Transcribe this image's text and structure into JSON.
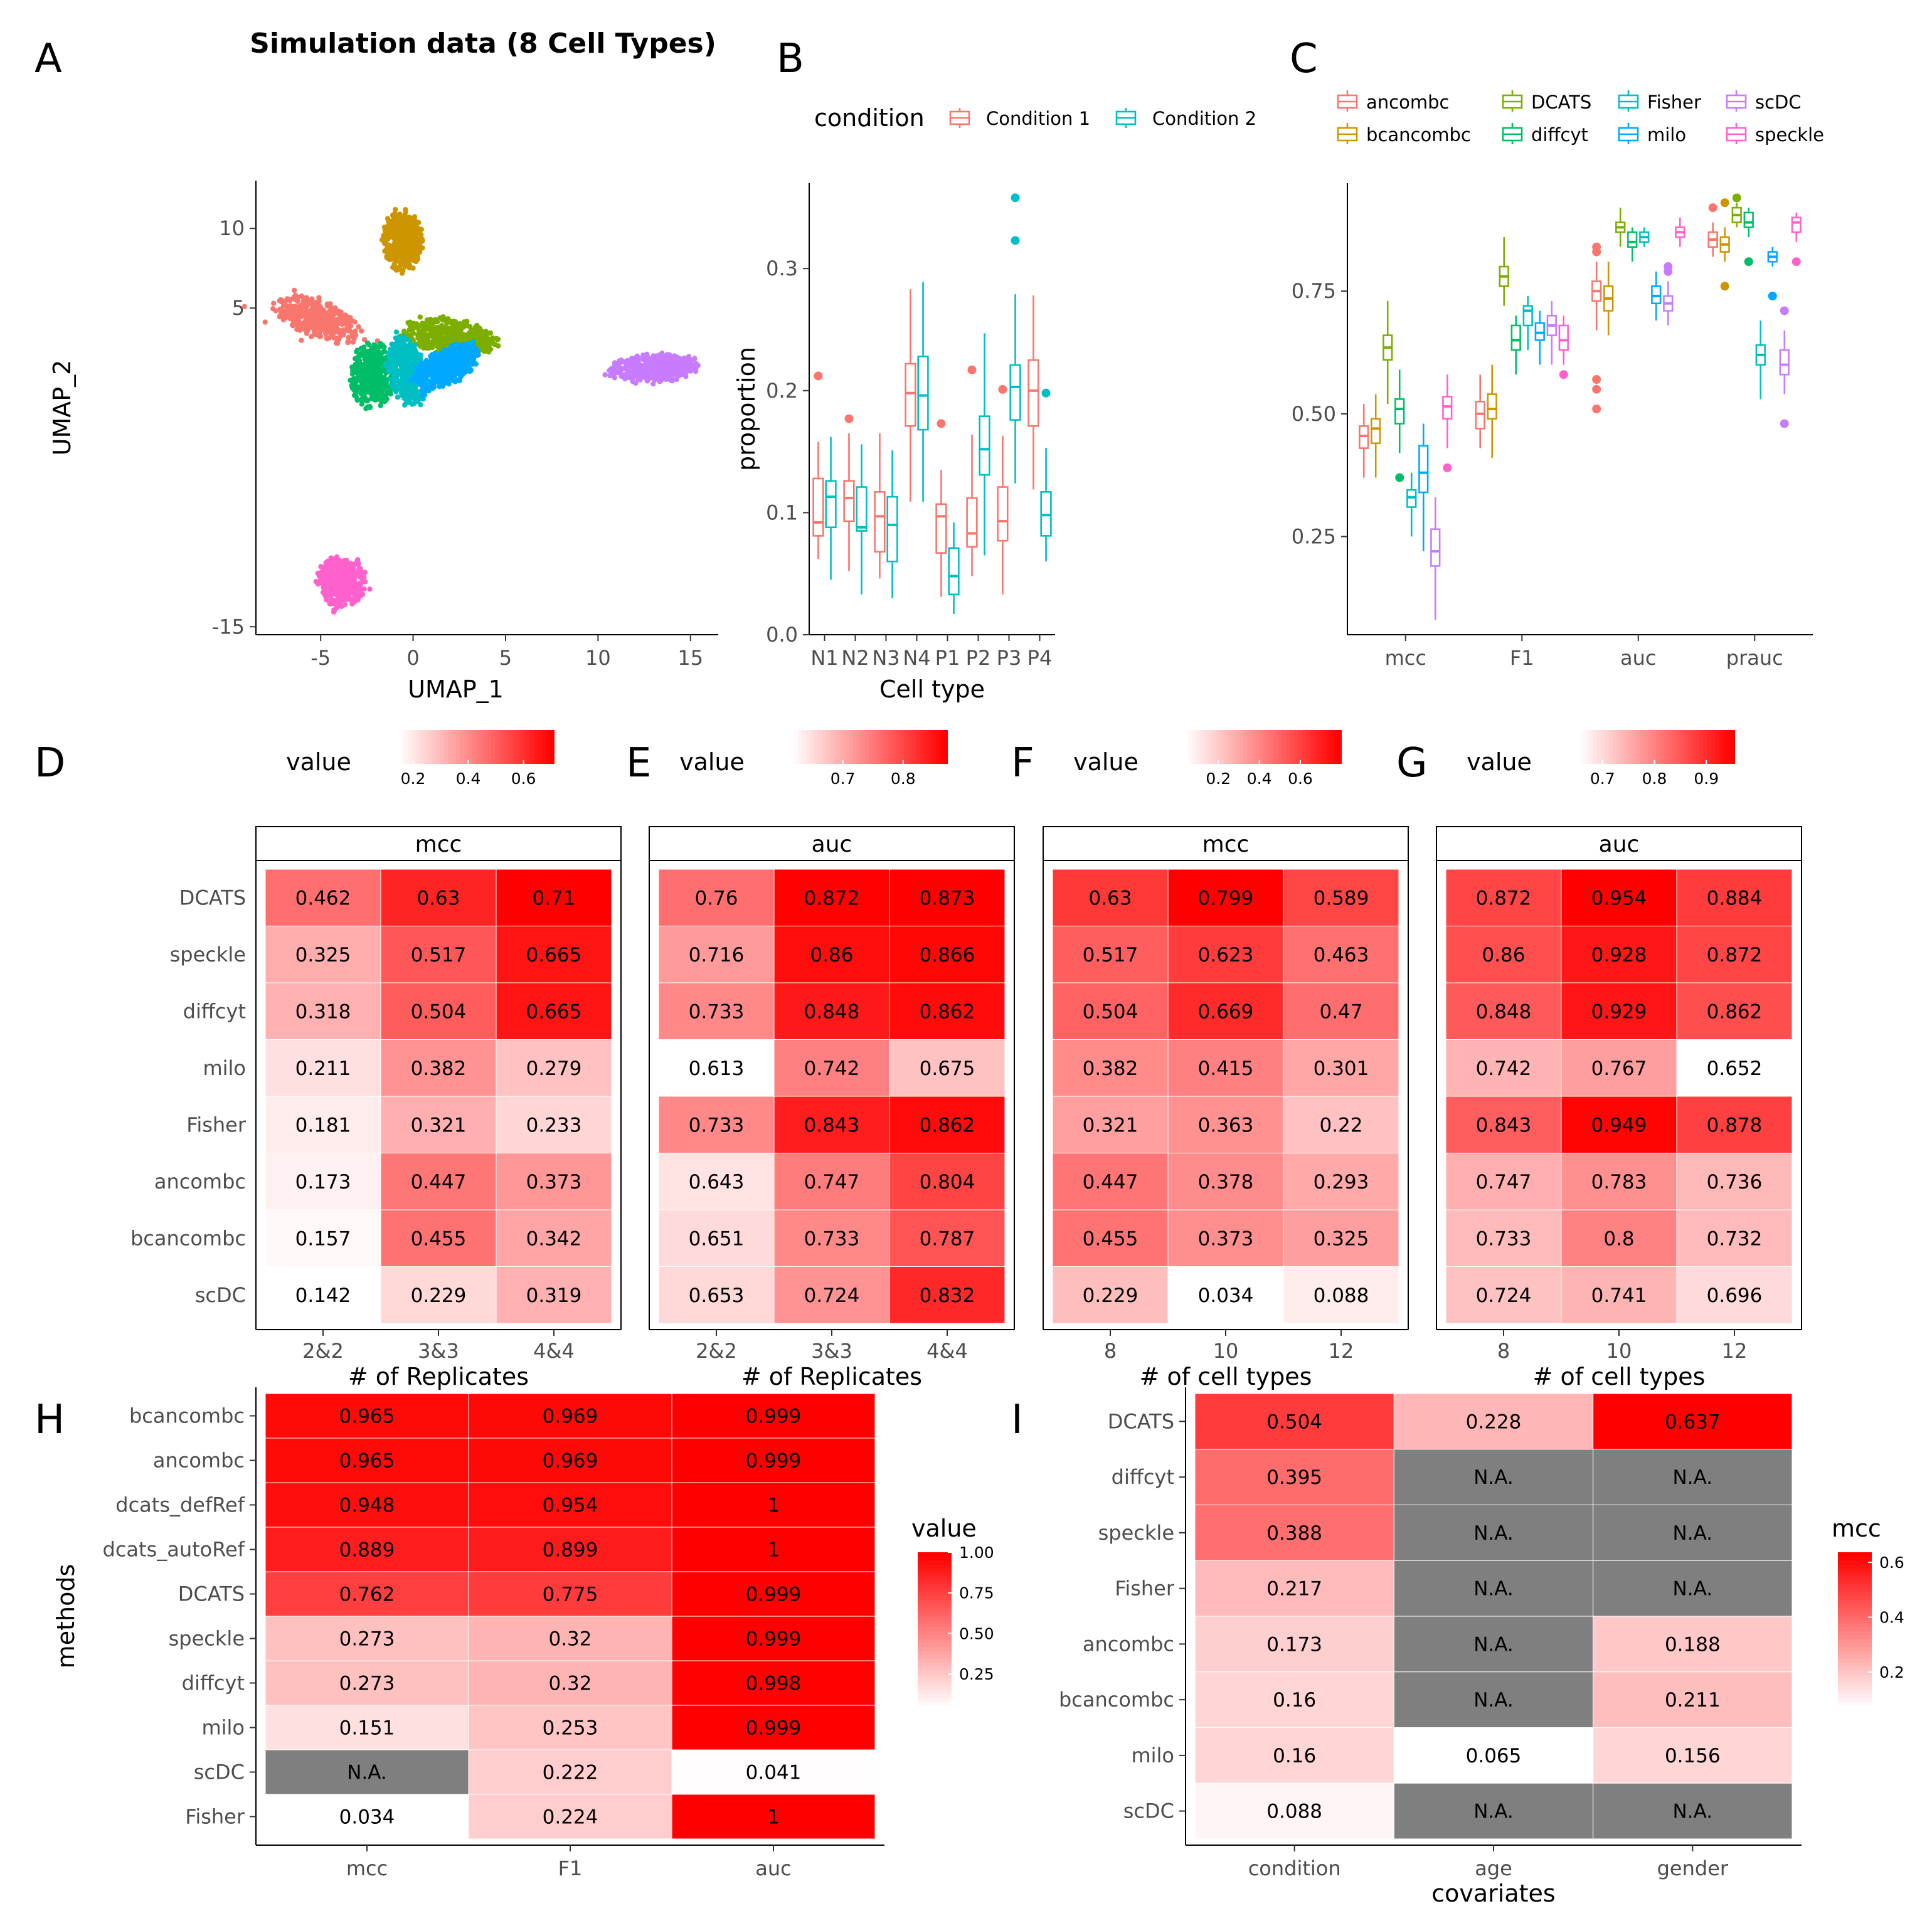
{
  "title": "Simulation data (8 Cell Types)",
  "panel_labels": [
    "A",
    "B",
    "C",
    "D",
    "E",
    "F",
    "G",
    "H",
    "I"
  ],
  "colors": {
    "heat_low": "#ffffff",
    "heat_high": "#ff0000",
    "na_fill": "#7f7f7f",
    "condition": [
      "#f8766d",
      "#00bfc4"
    ],
    "clusters": [
      "#f8766d",
      "#cd9600",
      "#7cae00",
      "#00be67",
      "#00bfc4",
      "#00a9ff",
      "#c77cff",
      "#ff61cc"
    ],
    "methods": [
      "#f8766d",
      "#cd9600",
      "#7cae00",
      "#00be67",
      "#00bfc4",
      "#00a9ff",
      "#c77cff",
      "#ff61cc"
    ]
  },
  "chart_data": [
    {
      "id": "A",
      "type": "scatter",
      "xlabel": "UMAP_1",
      "ylabel": "UMAP_2",
      "xticks": [
        -5,
        0,
        5,
        10,
        15
      ],
      "yticks": [
        -15,
        5,
        10
      ],
      "xlim": [
        -8.5,
        16.5
      ],
      "ylim": [
        -15.5,
        13
      ],
      "clusters": [
        {
          "cx": -5.2,
          "cy": 4.3,
          "rx": 2.6,
          "ry": 1.1,
          "rot": -25
        },
        {
          "cx": -0.6,
          "cy": 9.3,
          "rx": 1.1,
          "ry": 1.9,
          "rot": 0
        },
        {
          "cx": 2.0,
          "cy": 3.2,
          "rx": 2.6,
          "ry": 1.1,
          "rot": -10
        },
        {
          "cx": -2.2,
          "cy": 0.8,
          "rx": 1.2,
          "ry": 2.0,
          "rot": 0
        },
        {
          "cx": -0.3,
          "cy": 1.0,
          "rx": 1.0,
          "ry": 2.2,
          "rot": 10
        },
        {
          "cx": 1.8,
          "cy": 1.3,
          "rx": 2.0,
          "ry": 1.1,
          "rot": 35
        },
        {
          "cx": 13.0,
          "cy": 1.2,
          "rx": 2.4,
          "ry": 0.9,
          "rot": 5
        },
        {
          "cx": -3.9,
          "cy": -12.1,
          "rx": 1.3,
          "ry": 1.6,
          "rot": 0
        }
      ]
    },
    {
      "id": "B",
      "type": "box",
      "xlabel": "Cell type",
      "ylabel": "proportion",
      "legend_title": "condition",
      "legend": [
        "Condition 1",
        "Condition 2"
      ],
      "categories": [
        "N1",
        "N2",
        "N3",
        "N4",
        "P1",
        "P2",
        "P3",
        "P4"
      ],
      "yticks": [
        0.0,
        0.1,
        0.2,
        0.3
      ],
      "ylim": [
        0.0,
        0.37
      ],
      "boxes": [
        [
          [
            0.062,
            0.081,
            0.092,
            0.128,
            0.158,
            [
              0.212
            ]
          ],
          [
            0.045,
            0.088,
            0.113,
            0.126,
            0.162,
            []
          ]
        ],
        [
          [
            0.052,
            0.093,
            0.112,
            0.126,
            0.165,
            [
              0.177
            ]
          ],
          [
            0.033,
            0.085,
            0.088,
            0.121,
            0.156,
            []
          ]
        ],
        [
          [
            0.046,
            0.068,
            0.097,
            0.117,
            0.165,
            []
          ],
          [
            0.03,
            0.06,
            0.09,
            0.113,
            0.151,
            []
          ]
        ],
        [
          [
            0.109,
            0.171,
            0.198,
            0.222,
            0.283,
            []
          ],
          [
            0.109,
            0.168,
            0.196,
            0.228,
            0.289,
            []
          ]
        ],
        [
          [
            0.031,
            0.067,
            0.097,
            0.107,
            0.135,
            [
              0.173
            ]
          ],
          [
            0.017,
            0.033,
            0.048,
            0.071,
            0.092,
            []
          ]
        ],
        [
          [
            0.048,
            0.072,
            0.083,
            0.112,
            0.164,
            [
              0.217
            ]
          ],
          [
            0.065,
            0.131,
            0.152,
            0.179,
            0.247,
            []
          ]
        ],
        [
          [
            0.033,
            0.077,
            0.093,
            0.121,
            0.163,
            [
              0.201
            ]
          ],
          [
            0.124,
            0.176,
            0.203,
            0.221,
            0.279,
            [
              0.358,
              0.323
            ]
          ]
        ],
        [
          [
            0.119,
            0.171,
            0.2,
            0.225,
            0.278,
            []
          ],
          [
            0.06,
            0.081,
            0.098,
            0.117,
            0.153,
            [
              0.198
            ]
          ]
        ]
      ]
    },
    {
      "id": "C",
      "type": "box",
      "legend": [
        "ancombc",
        "bcancombc",
        "DCATS",
        "diffcyt",
        "Fisher",
        "milo",
        "scDC",
        "speckle"
      ],
      "categories": [
        "mcc",
        "F1",
        "auc",
        "prauc"
      ],
      "yticks": [
        0.25,
        0.5,
        0.75
      ],
      "ylim": [
        0.05,
        0.97
      ],
      "boxes": [
        [
          [
            0.37,
            0.43,
            0.455,
            0.475,
            0.52,
            []
          ],
          [
            0.37,
            0.44,
            0.47,
            0.49,
            0.54,
            []
          ],
          [
            0.52,
            0.61,
            0.635,
            0.66,
            0.73,
            []
          ],
          [
            0.42,
            0.48,
            0.51,
            0.53,
            0.59,
            [
              0.37
            ]
          ],
          [
            0.25,
            0.31,
            0.33,
            0.345,
            0.38,
            []
          ],
          [
            0.22,
            0.34,
            0.38,
            0.435,
            0.48,
            []
          ],
          [
            0.08,
            0.19,
            0.22,
            0.265,
            0.33,
            []
          ],
          [
            0.43,
            0.49,
            0.515,
            0.535,
            0.58,
            [
              0.39
            ]
          ]
        ],
        [
          [
            0.43,
            0.47,
            0.5,
            0.525,
            0.58,
            []
          ],
          [
            0.41,
            0.49,
            0.51,
            0.54,
            0.6,
            []
          ],
          [
            0.72,
            0.76,
            0.78,
            0.8,
            0.86,
            []
          ],
          [
            0.58,
            0.63,
            0.65,
            0.68,
            0.7,
            []
          ],
          [
            0.63,
            0.68,
            0.71,
            0.72,
            0.74,
            []
          ],
          [
            0.6,
            0.65,
            0.665,
            0.685,
            0.71,
            []
          ],
          [
            0.6,
            0.66,
            0.68,
            0.7,
            0.73,
            []
          ],
          [
            0.6,
            0.63,
            0.65,
            0.68,
            0.7,
            [
              0.58
            ]
          ]
        ],
        [
          [
            0.67,
            0.73,
            0.75,
            0.77,
            0.81,
            [
              0.84,
              0.83,
              0.57,
              0.55,
              0.51
            ]
          ],
          [
            0.66,
            0.71,
            0.735,
            0.76,
            0.81,
            []
          ],
          [
            0.84,
            0.87,
            0.88,
            0.89,
            0.92,
            []
          ],
          [
            0.81,
            0.84,
            0.85,
            0.87,
            0.88,
            []
          ],
          [
            0.84,
            0.85,
            0.86,
            0.87,
            0.88,
            []
          ],
          [
            0.69,
            0.725,
            0.74,
            0.76,
            0.79,
            []
          ],
          [
            0.68,
            0.71,
            0.725,
            0.74,
            0.77,
            [
              0.8,
              0.79
            ]
          ],
          [
            0.84,
            0.86,
            0.87,
            0.88,
            0.9,
            []
          ]
        ],
        [
          [
            0.82,
            0.84,
            0.855,
            0.87,
            0.89,
            [
              0.92
            ]
          ],
          [
            0.81,
            0.83,
            0.845,
            0.86,
            0.88,
            [
              0.93,
              0.76
            ]
          ],
          [
            0.88,
            0.89,
            0.905,
            0.92,
            0.93,
            [
              0.94
            ]
          ],
          [
            0.86,
            0.88,
            0.89,
            0.91,
            0.92,
            [
              0.81
            ]
          ],
          [
            0.53,
            0.6,
            0.62,
            0.64,
            0.69,
            []
          ],
          [
            0.8,
            0.81,
            0.82,
            0.83,
            0.84,
            [
              0.74
            ]
          ],
          [
            0.54,
            0.58,
            0.6,
            0.63,
            0.67,
            [
              0.71,
              0.48
            ]
          ],
          [
            0.85,
            0.87,
            0.89,
            0.9,
            0.91,
            [
              0.81
            ]
          ]
        ]
      ]
    },
    {
      "id": "D",
      "type": "heatmap",
      "strip": "mcc",
      "legend_title": "value",
      "legend_ticks": [
        "0.2",
        "0.4",
        "0.6"
      ],
      "legend_tick_values": [
        0.2,
        0.4,
        0.6
      ],
      "vmin": 0.142,
      "vmax": 0.71,
      "xlabel": "# of Replicates",
      "columns": [
        "2&2",
        "3&3",
        "4&4"
      ],
      "rows": [
        "DCATS",
        "speckle",
        "diffcyt",
        "milo",
        "Fisher",
        "ancombc",
        "bcancombc",
        "scDC"
      ],
      "values": [
        [
          0.462,
          0.63,
          0.71
        ],
        [
          0.325,
          0.517,
          0.665
        ],
        [
          0.318,
          0.504,
          0.665
        ],
        [
          0.211,
          0.382,
          0.279
        ],
        [
          0.181,
          0.321,
          0.233
        ],
        [
          0.173,
          0.447,
          0.373
        ],
        [
          0.157,
          0.455,
          0.342
        ],
        [
          0.142,
          0.229,
          0.319
        ]
      ]
    },
    {
      "id": "E",
      "type": "heatmap",
      "strip": "auc",
      "legend_title": "value",
      "legend_ticks": [
        "0.7",
        "0.8"
      ],
      "legend_tick_values": [
        0.7,
        0.8
      ],
      "vmin": 0.613,
      "vmax": 0.873,
      "xlabel": "# of Replicates",
      "columns": [
        "2&2",
        "3&3",
        "4&4"
      ],
      "rows": [
        "DCATS",
        "speckle",
        "diffcyt",
        "milo",
        "Fisher",
        "ancombc",
        "bcancombc",
        "scDC"
      ],
      "values": [
        [
          0.76,
          0.872,
          0.873
        ],
        [
          0.716,
          0.86,
          0.866
        ],
        [
          0.733,
          0.848,
          0.862
        ],
        [
          0.613,
          0.742,
          0.675
        ],
        [
          0.733,
          0.843,
          0.862
        ],
        [
          0.643,
          0.747,
          0.804
        ],
        [
          0.651,
          0.733,
          0.787
        ],
        [
          0.653,
          0.724,
          0.832
        ]
      ]
    },
    {
      "id": "F",
      "type": "heatmap",
      "strip": "mcc",
      "legend_title": "value",
      "legend_ticks": [
        "0.2",
        "0.4",
        "0.6"
      ],
      "legend_tick_values": [
        0.2,
        0.4,
        0.6
      ],
      "vmin": 0.034,
      "vmax": 0.799,
      "xlabel": "# of cell types",
      "columns": [
        "8",
        "10",
        "12"
      ],
      "rows": [
        "DCATS",
        "speckle",
        "diffcyt",
        "milo",
        "Fisher",
        "ancombc",
        "bcancombc",
        "scDC"
      ],
      "values": [
        [
          0.63,
          0.799,
          0.589
        ],
        [
          0.517,
          0.623,
          0.463
        ],
        [
          0.504,
          0.669,
          0.47
        ],
        [
          0.382,
          0.415,
          0.301
        ],
        [
          0.321,
          0.363,
          0.22
        ],
        [
          0.447,
          0.378,
          0.293
        ],
        [
          0.455,
          0.373,
          0.325
        ],
        [
          0.229,
          0.034,
          0.088
        ]
      ]
    },
    {
      "id": "G",
      "type": "heatmap",
      "strip": "auc",
      "legend_title": "value",
      "legend_ticks": [
        "0.7",
        "0.8",
        "0.9"
      ],
      "legend_tick_values": [
        0.7,
        0.8,
        0.9
      ],
      "vmin": 0.652,
      "vmax": 0.954,
      "xlabel": "# of cell types",
      "columns": [
        "8",
        "10",
        "12"
      ],
      "rows": [
        "DCATS",
        "speckle",
        "diffcyt",
        "milo",
        "Fisher",
        "ancombc",
        "bcancombc",
        "scDC"
      ],
      "values": [
        [
          0.872,
          0.954,
          0.884
        ],
        [
          0.86,
          0.928,
          0.872
        ],
        [
          0.848,
          0.929,
          0.862
        ],
        [
          0.742,
          0.767,
          0.652
        ],
        [
          0.843,
          0.949,
          0.878
        ],
        [
          0.747,
          0.783,
          0.736
        ],
        [
          0.733,
          0.8,
          0.732
        ],
        [
          0.724,
          0.741,
          0.696
        ]
      ]
    },
    {
      "id": "H",
      "type": "heatmap",
      "ylabel": "methods",
      "legend_title": "value",
      "legend_ticks": [
        "1.00",
        "0.75",
        "0.50",
        "0.25"
      ],
      "legend_tick_values": [
        1.0,
        0.75,
        0.5,
        0.25
      ],
      "vmin": 0.034,
      "vmax": 1.0,
      "columns": [
        "mcc",
        "F1",
        "auc"
      ],
      "rows": [
        "bcancombc",
        "ancombc",
        "dcats_defRef",
        "dcats_autoRef",
        "DCATS",
        "speckle",
        "diffcyt",
        "milo",
        "scDC",
        "Fisher"
      ],
      "values": [
        [
          0.965,
          0.969,
          0.999
        ],
        [
          0.965,
          0.969,
          0.999
        ],
        [
          0.948,
          0.954,
          1
        ],
        [
          0.889,
          0.899,
          1
        ],
        [
          0.762,
          0.775,
          0.999
        ],
        [
          0.273,
          0.32,
          0.999
        ],
        [
          0.273,
          0.32,
          0.998
        ],
        [
          0.151,
          0.253,
          0.999
        ],
        [
          null,
          0.222,
          0.041
        ],
        [
          0.034,
          0.224,
          1
        ]
      ],
      "labels": [
        [
          "0.965",
          "0.969",
          "0.999"
        ],
        [
          "0.965",
          "0.969",
          "0.999"
        ],
        [
          "0.948",
          "0.954",
          "1"
        ],
        [
          "0.889",
          "0.899",
          "1"
        ],
        [
          "0.762",
          "0.775",
          "0.999"
        ],
        [
          "0.273",
          "0.32",
          "0.999"
        ],
        [
          "0.273",
          "0.32",
          "0.998"
        ],
        [
          "0.151",
          "0.253",
          "0.999"
        ],
        [
          "N.A.",
          "0.222",
          "0.041"
        ],
        [
          "0.034",
          "0.224",
          "1"
        ]
      ]
    },
    {
      "id": "I",
      "type": "heatmap",
      "xlabel": "covariates",
      "legend_title": "mcc",
      "legend_ticks": [
        "0.6",
        "0.4",
        "0.2"
      ],
      "legend_tick_values": [
        0.6,
        0.4,
        0.2
      ],
      "vmin": 0.065,
      "vmax": 0.637,
      "columns": [
        "condition",
        "age",
        "gender"
      ],
      "rows": [
        "DCATS",
        "diffcyt",
        "speckle",
        "Fisher",
        "ancombc",
        "bcancombc",
        "milo",
        "scDC"
      ],
      "values": [
        [
          0.504,
          0.228,
          0.637
        ],
        [
          0.395,
          null,
          null
        ],
        [
          0.388,
          null,
          null
        ],
        [
          0.217,
          null,
          null
        ],
        [
          0.173,
          null,
          0.188
        ],
        [
          0.16,
          null,
          0.211
        ],
        [
          0.16,
          0.065,
          0.156
        ],
        [
          0.088,
          null,
          null
        ]
      ],
      "labels": [
        [
          "0.504",
          "0.228",
          "0.637"
        ],
        [
          "0.395",
          "N.A.",
          "N.A."
        ],
        [
          "0.388",
          "N.A.",
          "N.A."
        ],
        [
          "0.217",
          "N.A.",
          "N.A."
        ],
        [
          "0.173",
          "N.A.",
          "0.188"
        ],
        [
          "0.16",
          "N.A.",
          "0.211"
        ],
        [
          "0.16",
          "0.065",
          "0.156"
        ],
        [
          "0.088",
          "N.A.",
          "N.A."
        ]
      ]
    }
  ]
}
